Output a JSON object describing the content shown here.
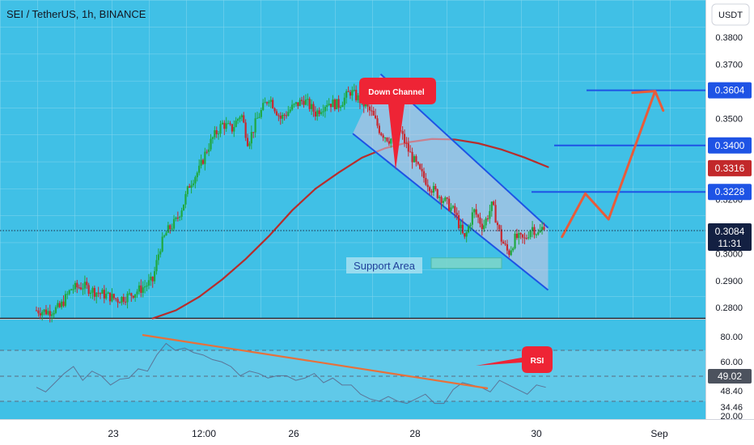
{
  "header": {
    "symbol_title": "SEI / TetherUS, 1h, BINANCE"
  },
  "price_axis": {
    "unit": "USDT",
    "ticks": [
      "0.3800",
      "0.3700",
      "0.3600",
      "0.3500",
      "0.3400",
      "0.3300",
      "0.3200",
      "0.3100",
      "0.3000",
      "0.2900",
      "0.2800"
    ],
    "badges": [
      {
        "text": "0.3604",
        "color": "#1e53e5"
      },
      {
        "text": "0.3400",
        "color": "#1e53e5"
      },
      {
        "text": "0.3316",
        "color": "#c2282a"
      },
      {
        "text": "0.3228",
        "color": "#1e53e5"
      }
    ],
    "last_price": {
      "value": "0.3084",
      "countdown": "11:31",
      "color": "#132042"
    }
  },
  "rsi_axis": {
    "ticks": [
      "80.00",
      "60.00",
      "48.40",
      "34.46",
      "20.00"
    ],
    "current": {
      "text": "49.02",
      "color": "#4c525e"
    }
  },
  "time_axis": {
    "labels": [
      "23",
      "12:00",
      "26",
      "28",
      "30",
      "Sep"
    ]
  },
  "annotations": {
    "down_channel": "Down Channel",
    "support_area": "Support Area",
    "rsi": "RSI"
  },
  "chart_data": [
    {
      "type": "candlestick",
      "title": "SEI / TetherUS, 1h, BINANCE",
      "ylabel": "USDT",
      "ylim": [
        0.276,
        0.385
      ],
      "last_price": 0.3084,
      "x_labels": [
        "23",
        "12:00",
        "26",
        "28",
        "30",
        "Sep"
      ],
      "series": [
        {
          "kind": "close_path",
          "points": [
            [
              0.0,
              0.279
            ],
            [
              0.5,
              0.2785
            ],
            [
              1.0,
              0.28
            ],
            [
              1.5,
              0.287
            ],
            [
              2.0,
              0.288
            ],
            [
              2.5,
              0.286
            ],
            [
              3.0,
              0.2845
            ],
            [
              3.5,
              0.283
            ],
            [
              4.0,
              0.2845
            ],
            [
              4.5,
              0.287
            ],
            [
              5.0,
              0.29
            ],
            [
              5.3,
              0.302
            ],
            [
              5.6,
              0.308
            ],
            [
              6.0,
              0.312
            ],
            [
              6.3,
              0.318
            ],
            [
              6.6,
              0.326
            ],
            [
              7.0,
              0.331
            ],
            [
              7.3,
              0.338
            ],
            [
              7.6,
              0.343
            ],
            [
              8.0,
              0.348
            ],
            [
              8.4,
              0.346
            ],
            [
              8.8,
              0.352
            ],
            [
              9.1,
              0.341
            ],
            [
              9.5,
              0.35
            ],
            [
              10.0,
              0.358
            ],
            [
              10.5,
              0.35
            ],
            [
              11.0,
              0.354
            ],
            [
              11.5,
              0.357
            ],
            [
              12.0,
              0.352
            ],
            [
              12.5,
              0.356
            ],
            [
              13.0,
              0.355
            ],
            [
              13.5,
              0.36
            ],
            [
              14.0,
              0.356
            ],
            [
              14.4,
              0.352
            ],
            [
              14.8,
              0.345
            ],
            [
              15.2,
              0.342
            ],
            [
              15.6,
              0.346
            ],
            [
              16.0,
              0.338
            ],
            [
              16.5,
              0.33
            ],
            [
              17.0,
              0.324
            ],
            [
              17.5,
              0.32
            ],
            [
              18.0,
              0.315
            ],
            [
              18.4,
              0.305
            ],
            [
              18.8,
              0.316
            ],
            [
              19.2,
              0.31
            ],
            [
              19.6,
              0.318
            ],
            [
              20.0,
              0.305
            ],
            [
              20.3,
              0.3
            ],
            [
              20.6,
              0.306
            ],
            [
              21.0,
              0.305
            ],
            [
              21.3,
              0.31
            ],
            [
              21.6,
              0.307
            ],
            [
              21.9,
              0.312
            ]
          ]
        },
        {
          "kind": "moving_average",
          "color": "#b72d2c",
          "points": [
            [
              5.0,
              0.276
            ],
            [
              6.0,
              0.279
            ],
            [
              7.0,
              0.284
            ],
            [
              8.0,
              0.2905
            ],
            [
              9.0,
              0.298
            ],
            [
              10.0,
              0.3065
            ],
            [
              11.0,
              0.316
            ],
            [
              12.0,
              0.324
            ],
            [
              13.0,
              0.33
            ],
            [
              14.0,
              0.3355
            ],
            [
              15.0,
              0.339
            ],
            [
              16.0,
              0.3412
            ],
            [
              17.0,
              0.3424
            ],
            [
              18.0,
              0.3422
            ],
            [
              19.0,
              0.3408
            ],
            [
              20.0,
              0.3385
            ],
            [
              21.0,
              0.3355
            ],
            [
              22.0,
              0.332
            ]
          ]
        }
      ],
      "drawn_lines": {
        "channel_upper": [
          [
            14.8,
            0.3664
          ],
          [
            22.0,
            0.3095
          ]
        ],
        "channel_lower": [
          [
            13.6,
            0.3444
          ],
          [
            22.0,
            0.2865
          ]
        ],
        "levels": [
          {
            "price": 0.3604,
            "color": "#1e53e5"
          },
          {
            "price": 0.34,
            "color": "#1e53e5"
          },
          {
            "price": 0.3228,
            "color": "#1e53e5"
          }
        ],
        "projection": [
          [
            22.6,
            0.3062
          ],
          [
            23.6,
            0.3222
          ],
          [
            24.6,
            0.3127
          ],
          [
            26.6,
            0.3601
          ]
        ],
        "support_zone": [
          0.2955,
          0.2975
        ]
      }
    },
    {
      "type": "line",
      "title": "RSI",
      "ylim": [
        18,
        90
      ],
      "ticks": [
        80,
        60,
        48.4,
        34.46,
        20
      ],
      "current": 49.02,
      "series": [
        {
          "name": "RSI",
          "values": [
            48,
            44,
            52,
            60,
            66,
            54,
            62,
            58,
            50,
            55,
            56,
            64,
            62,
            76,
            86,
            80,
            82,
            78,
            76,
            72,
            70,
            66,
            58,
            62,
            60,
            56,
            58,
            58,
            54,
            56,
            60,
            52,
            56,
            50,
            50,
            42,
            38,
            36,
            40,
            36,
            34,
            38,
            42,
            34,
            34,
            46,
            52,
            50,
            48,
            44,
            54,
            50,
            46,
            42,
            50,
            48
          ]
        }
      ],
      "trendline": [
        [
          82,
          0
        ],
        [
          48,
          1
        ]
      ]
    }
  ]
}
